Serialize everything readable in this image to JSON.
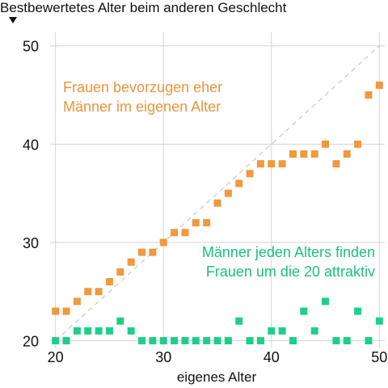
{
  "chart_data": {
    "type": "scatter",
    "ylabel": "Bestbewertetes Alter beim anderen Geschlecht",
    "xlabel": "eigenes Alter",
    "xlim": [
      19.5,
      50.5
    ],
    "ylim": [
      19.3,
      52.2
    ],
    "xticks": [
      20,
      30,
      40,
      50
    ],
    "yticks": [
      20,
      30,
      40,
      50
    ],
    "grid": true,
    "reference_line": "diagonal y = x",
    "annotations": [
      {
        "lines": [
          "Frauen bevorzugen eher",
          "Männer im eigenen Alter"
        ],
        "color": "#e8953a",
        "series": "women"
      },
      {
        "lines": [
          "Männer jeden Alters finden",
          "Frauen um die 20 attraktiv"
        ],
        "color": "#1bbf80",
        "series": "men"
      }
    ],
    "series": [
      {
        "color": "#f0993e",
        "x": [
          20,
          21,
          22,
          23,
          24,
          25,
          26,
          27,
          28,
          29,
          30,
          31,
          32,
          33,
          34,
          35,
          36,
          37,
          38,
          39,
          40,
          41,
          42,
          43,
          44,
          45,
          46,
          47,
          48,
          49,
          50
        ],
        "y": [
          23,
          23,
          24,
          25,
          25,
          26,
          27,
          28,
          29,
          29,
          30,
          31,
          31,
          32,
          32,
          34,
          35,
          36,
          37,
          38,
          38,
          38,
          39,
          39,
          39,
          40,
          38,
          39,
          40,
          45,
          46
        ]
      },
      {
        "color": "#1ecf88",
        "x": [
          20,
          21,
          22,
          23,
          24,
          25,
          26,
          27,
          28,
          29,
          30,
          31,
          32,
          33,
          34,
          35,
          36,
          37,
          38,
          39,
          40,
          41,
          42,
          43,
          44,
          45,
          46,
          47,
          48,
          49,
          50
        ],
        "y": [
          20,
          20,
          21,
          21,
          21,
          21,
          22,
          21,
          20,
          20,
          20,
          20,
          20,
          20,
          20,
          20,
          20,
          22,
          20,
          20,
          21,
          21,
          20,
          23,
          21,
          24,
          20,
          20,
          23,
          20,
          22
        ]
      }
    ]
  }
}
